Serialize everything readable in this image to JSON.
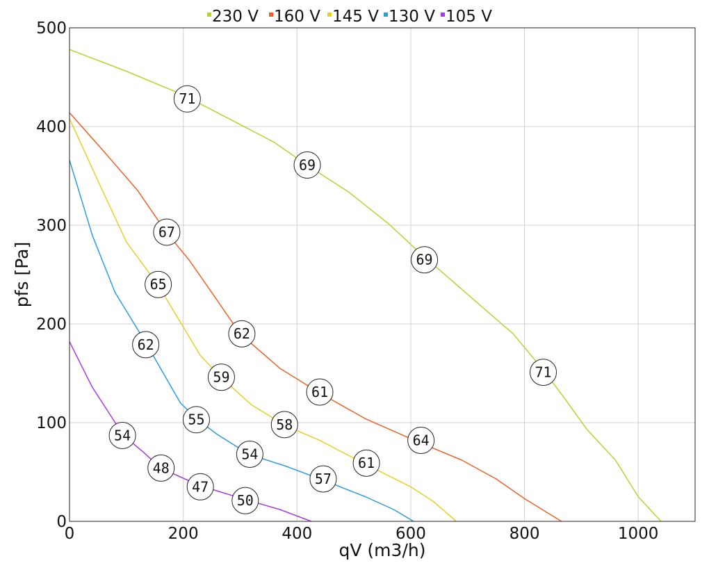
{
  "chart_data": {
    "type": "line",
    "xlabel": "qV (m3/h)",
    "ylabel": "pfs [Pa]",
    "xlim": [
      0,
      1100
    ],
    "ylim": [
      0,
      500
    ],
    "x_ticks": [
      0,
      200,
      400,
      600,
      800,
      1000
    ],
    "y_ticks": [
      0,
      100,
      200,
      300,
      400,
      500
    ],
    "grid": true,
    "legend_position": "top-center",
    "series": [
      {
        "name": "230 V",
        "color": "#b5d334",
        "points": [
          [
            0,
            478
          ],
          [
            100,
            456
          ],
          [
            200,
            432
          ],
          [
            300,
            402
          ],
          [
            360,
            384
          ],
          [
            420,
            360
          ],
          [
            490,
            334
          ],
          [
            560,
            302
          ],
          [
            620,
            270
          ],
          [
            700,
            230
          ],
          [
            780,
            190
          ],
          [
            835,
            152
          ],
          [
            870,
            125
          ],
          [
            910,
            93
          ],
          [
            960,
            62
          ],
          [
            1000,
            25
          ],
          [
            1040,
            0
          ]
        ]
      },
      {
        "name": "160 V",
        "color": "#e8622a",
        "points": [
          [
            0,
            414
          ],
          [
            60,
            375
          ],
          [
            120,
            335
          ],
          [
            170,
            293
          ],
          [
            210,
            265
          ],
          [
            250,
            232
          ],
          [
            300,
            190
          ],
          [
            370,
            155
          ],
          [
            440,
            130
          ],
          [
            520,
            104
          ],
          [
            615,
            80
          ],
          [
            690,
            62
          ],
          [
            750,
            43
          ],
          [
            800,
            23
          ],
          [
            865,
            0
          ]
        ]
      },
      {
        "name": "145 V",
        "color": "#e2d12a",
        "points": [
          [
            0,
            408
          ],
          [
            50,
            345
          ],
          [
            100,
            283
          ],
          [
            155,
            240
          ],
          [
            200,
            197
          ],
          [
            230,
            168
          ],
          [
            270,
            144
          ],
          [
            320,
            118
          ],
          [
            380,
            97
          ],
          [
            440,
            82
          ],
          [
            520,
            58
          ],
          [
            600,
            35
          ],
          [
            640,
            20
          ],
          [
            680,
            0
          ]
        ]
      },
      {
        "name": "130 V",
        "color": "#2f9ad8",
        "points": [
          [
            0,
            366
          ],
          [
            40,
            290
          ],
          [
            80,
            232
          ],
          [
            135,
            180
          ],
          [
            195,
            120
          ],
          [
            225,
            103
          ],
          [
            260,
            88
          ],
          [
            315,
            68
          ],
          [
            380,
            56
          ],
          [
            445,
            42
          ],
          [
            520,
            25
          ],
          [
            570,
            12
          ],
          [
            605,
            0
          ]
        ]
      },
      {
        "name": "105 V",
        "color": "#a73ad8",
        "points": [
          [
            0,
            182
          ],
          [
            40,
            136
          ],
          [
            95,
            87
          ],
          [
            130,
            70
          ],
          [
            160,
            54
          ],
          [
            230,
            36
          ],
          [
            310,
            22
          ],
          [
            370,
            12
          ],
          [
            425,
            0
          ]
        ]
      }
    ],
    "annotations": [
      {
        "x": 207,
        "y": 428,
        "label": "71",
        "series": "230 V"
      },
      {
        "x": 418,
        "y": 361,
        "label": "69",
        "series": "230 V"
      },
      {
        "x": 624,
        "y": 265,
        "label": "69",
        "series": "230 V"
      },
      {
        "x": 833,
        "y": 151,
        "label": "71",
        "series": "230 V"
      },
      {
        "x": 171,
        "y": 293,
        "label": "67",
        "series": "160 V"
      },
      {
        "x": 303,
        "y": 190,
        "label": "62",
        "series": "160 V"
      },
      {
        "x": 440,
        "y": 131,
        "label": "61",
        "series": "160 V"
      },
      {
        "x": 618,
        "y": 82,
        "label": "64",
        "series": "160 V"
      },
      {
        "x": 156,
        "y": 240,
        "label": "65",
        "series": "145 V"
      },
      {
        "x": 267,
        "y": 146,
        "label": "59",
        "series": "145 V"
      },
      {
        "x": 378,
        "y": 98,
        "label": "58",
        "series": "145 V"
      },
      {
        "x": 522,
        "y": 59,
        "label": "61",
        "series": "145 V"
      },
      {
        "x": 134,
        "y": 179,
        "label": "62",
        "series": "130 V"
      },
      {
        "x": 223,
        "y": 103,
        "label": "55",
        "series": "130 V"
      },
      {
        "x": 317,
        "y": 68,
        "label": "54",
        "series": "130 V"
      },
      {
        "x": 446,
        "y": 43,
        "label": "57",
        "series": "130 V"
      },
      {
        "x": 93,
        "y": 87,
        "label": "54",
        "series": "105 V"
      },
      {
        "x": 161,
        "y": 54,
        "label": "48",
        "series": "105 V"
      },
      {
        "x": 230,
        "y": 35,
        "label": "47",
        "series": "105 V"
      },
      {
        "x": 309,
        "y": 21,
        "label": "50",
        "series": "105 V"
      }
    ]
  }
}
